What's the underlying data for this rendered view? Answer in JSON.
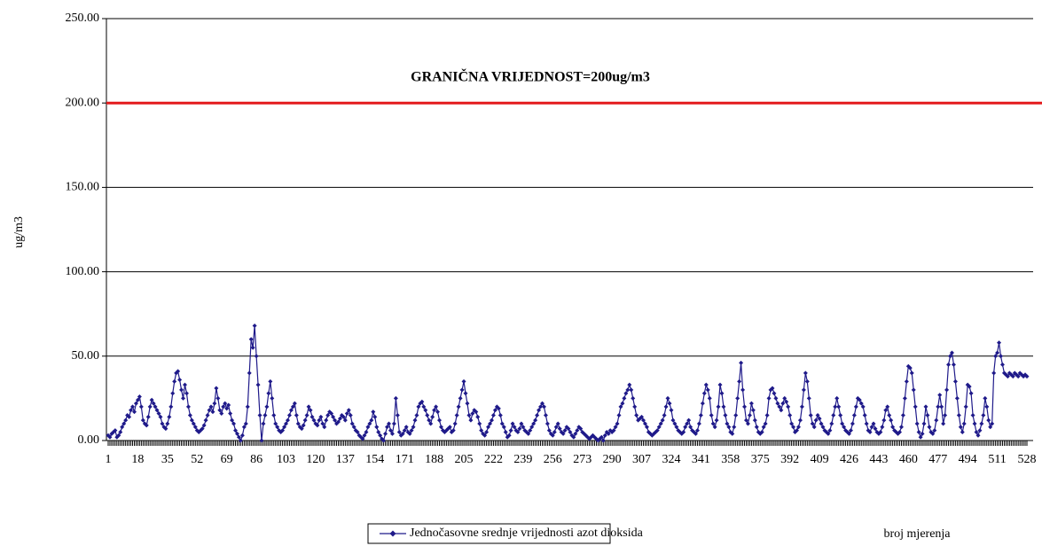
{
  "chart_data": {
    "type": "line",
    "y_label": "ug/m3",
    "x_label": "broj mjerenja",
    "threshold": {
      "value": 200,
      "color": "#e31a1c",
      "label": "GRANIČNA VRIJEDNOST=200ug/m3"
    },
    "legend": "bottom",
    "grid": true,
    "xlim": [
      1,
      528
    ],
    "xticks": [
      1,
      18,
      35,
      52,
      69,
      86,
      103,
      120,
      137,
      154,
      171,
      188,
      205,
      222,
      239,
      256,
      273,
      290,
      307,
      324,
      341,
      358,
      375,
      392,
      409,
      426,
      443,
      460,
      477,
      494,
      511,
      528
    ],
    "ylim": [
      0,
      250
    ],
    "yticks": [
      {
        "value": 0,
        "label": "0.00"
      },
      {
        "value": 50,
        "label": "50.00"
      },
      {
        "value": 100,
        "label": "100.00"
      },
      {
        "value": 150,
        "label": "150.00"
      },
      {
        "value": 200,
        "label": "200.00"
      },
      {
        "value": 250,
        "label": "250.00"
      }
    ],
    "x": [
      1,
      2,
      3,
      4,
      5,
      6,
      7,
      8,
      9,
      10,
      11,
      12,
      13,
      14,
      15,
      16,
      17,
      18,
      19,
      20,
      21,
      22,
      23,
      24,
      25,
      26,
      27,
      28,
      29,
      30,
      31,
      32,
      33,
      34,
      35,
      36,
      37,
      38,
      39,
      40,
      41,
      42,
      43,
      44,
      45,
      46,
      47,
      48,
      49,
      50,
      51,
      52,
      53,
      54,
      55,
      56,
      57,
      58,
      59,
      60,
      61,
      62,
      63,
      64,
      65,
      66,
      67,
      68,
      69,
      70,
      71,
      72,
      73,
      74,
      75,
      76,
      77,
      78,
      79,
      80,
      81,
      82,
      83,
      84,
      85,
      86,
      87,
      88,
      89,
      90,
      91,
      92,
      93,
      94,
      95,
      96,
      97,
      98,
      99,
      100,
      101,
      102,
      103,
      104,
      105,
      106,
      107,
      108,
      109,
      110,
      111,
      112,
      113,
      114,
      115,
      116,
      117,
      118,
      119,
      120,
      121,
      122,
      123,
      124,
      125,
      126,
      127,
      128,
      129,
      130,
      131,
      132,
      133,
      134,
      135,
      136,
      137,
      138,
      139,
      140,
      141,
      142,
      143,
      144,
      145,
      146,
      147,
      148,
      149,
      150,
      151,
      152,
      153,
      154,
      155,
      156,
      157,
      158,
      159,
      160,
      161,
      162,
      163,
      164,
      165,
      166,
      167,
      168,
      169,
      170,
      171,
      172,
      173,
      174,
      175,
      176,
      177,
      178,
      179,
      180,
      181,
      182,
      183,
      184,
      185,
      186,
      187,
      188,
      189,
      190,
      191,
      192,
      193,
      194,
      195,
      196,
      197,
      198,
      199,
      200,
      201,
      202,
      203,
      204,
      205,
      206,
      207,
      208,
      209,
      210,
      211,
      212,
      213,
      214,
      215,
      216,
      217,
      218,
      219,
      220,
      221,
      222,
      223,
      224,
      225,
      226,
      227,
      228,
      229,
      230,
      231,
      232,
      233,
      234,
      235,
      236,
      237,
      238,
      239,
      240,
      241,
      242,
      243,
      244,
      245,
      246,
      247,
      248,
      249,
      250,
      251,
      252,
      253,
      254,
      255,
      256,
      257,
      258,
      259,
      260,
      261,
      262,
      263,
      264,
      265,
      266,
      267,
      268,
      269,
      270,
      271,
      272,
      273,
      274,
      275,
      276,
      277,
      278,
      279,
      280,
      281,
      282,
      283,
      284,
      285,
      286,
      287,
      288,
      289,
      290,
      291,
      292,
      293,
      294,
      295,
      296,
      297,
      298,
      299,
      300,
      301,
      302,
      303,
      304,
      305,
      306,
      307,
      308,
      309,
      310,
      311,
      312,
      313,
      314,
      315,
      316,
      317,
      318,
      319,
      320,
      321,
      322,
      323,
      324,
      325,
      326,
      327,
      328,
      329,
      330,
      331,
      332,
      333,
      334,
      335,
      336,
      337,
      338,
      339,
      340,
      341,
      342,
      343,
      344,
      345,
      346,
      347,
      348,
      349,
      350,
      351,
      352,
      353,
      354,
      355,
      356,
      357,
      358,
      359,
      360,
      361,
      362,
      363,
      364,
      365,
      366,
      367,
      368,
      369,
      370,
      371,
      372,
      373,
      374,
      375,
      376,
      377,
      378,
      379,
      380,
      381,
      382,
      383,
      384,
      385,
      386,
      387,
      388,
      389,
      390,
      391,
      392,
      393,
      394,
      395,
      396,
      397,
      398,
      399,
      400,
      401,
      402,
      403,
      404,
      405,
      406,
      407,
      408,
      409,
      410,
      411,
      412,
      413,
      414,
      415,
      416,
      417,
      418,
      419,
      420,
      421,
      422,
      423,
      424,
      425,
      426,
      427,
      428,
      429,
      430,
      431,
      432,
      433,
      434,
      435,
      436,
      437,
      438,
      439,
      440,
      441,
      442,
      443,
      444,
      445,
      446,
      447,
      448,
      449,
      450,
      451,
      452,
      453,
      454,
      455,
      456,
      457,
      458,
      459,
      460,
      461,
      462,
      463,
      464,
      465,
      466,
      467,
      468,
      469,
      470,
      471,
      472,
      473,
      474,
      475,
      476,
      477,
      478,
      479,
      480,
      481,
      482,
      483,
      484,
      485,
      486,
      487,
      488,
      489,
      490,
      491,
      492,
      493,
      494,
      495,
      496,
      497,
      498,
      499,
      500,
      501,
      502,
      503,
      504,
      505,
      506,
      507,
      508,
      509,
      510,
      511,
      512,
      513,
      514,
      515,
      516,
      517,
      518,
      519,
      520,
      521,
      522,
      523,
      524,
      525,
      526,
      527,
      528
    ],
    "series": [
      {
        "name": "Jednočasovne srednje vrijednosti azot dioksida",
        "color": "#1f1a8a",
        "values": [
          3,
          2,
          4,
          5,
          6,
          2,
          3,
          5,
          8,
          10,
          12,
          15,
          14,
          18,
          20,
          17,
          22,
          24,
          26,
          20,
          12,
          10,
          9,
          14,
          20,
          24,
          22,
          20,
          18,
          16,
          14,
          10,
          8,
          7,
          10,
          14,
          20,
          28,
          35,
          40,
          41,
          36,
          30,
          25,
          33,
          28,
          20,
          15,
          12,
          10,
          8,
          6,
          5,
          6,
          7,
          9,
          12,
          15,
          18,
          20,
          17,
          22,
          31,
          25,
          18,
          16,
          20,
          22,
          19,
          21,
          16,
          12,
          10,
          6,
          4,
          2,
          0,
          3,
          8,
          10,
          20,
          40,
          60,
          55,
          68,
          50,
          33,
          15,
          0,
          10,
          15,
          20,
          28,
          35,
          25,
          15,
          10,
          8,
          6,
          5,
          6,
          8,
          10,
          12,
          15,
          18,
          20,
          22,
          15,
          10,
          8,
          7,
          9,
          12,
          15,
          20,
          18,
          14,
          12,
          10,
          9,
          12,
          14,
          10,
          8,
          12,
          15,
          17,
          16,
          14,
          12,
          10,
          11,
          13,
          15,
          14,
          12,
          16,
          18,
          15,
          10,
          8,
          6,
          5,
          3,
          2,
          1,
          3,
          5,
          8,
          10,
          12,
          17,
          14,
          8,
          5,
          3,
          1,
          0,
          4,
          8,
          10,
          6,
          4,
          10,
          25,
          15,
          5,
          3,
          4,
          6,
          8,
          5,
          4,
          6,
          8,
          12,
          15,
          20,
          22,
          23,
          20,
          18,
          15,
          12,
          10,
          14,
          18,
          20,
          17,
          12,
          8,
          6,
          5,
          6,
          7,
          8,
          5,
          6,
          10,
          15,
          20,
          25,
          30,
          35,
          28,
          22,
          15,
          12,
          16,
          18,
          17,
          14,
          10,
          6,
          4,
          3,
          5,
          8,
          10,
          12,
          15,
          18,
          20,
          19,
          15,
          10,
          8,
          5,
          2,
          3,
          6,
          10,
          8,
          6,
          5,
          7,
          10,
          8,
          6,
          5,
          4,
          6,
          8,
          10,
          12,
          15,
          18,
          20,
          22,
          20,
          15,
          10,
          6,
          4,
          3,
          5,
          8,
          10,
          7,
          5,
          4,
          6,
          8,
          7,
          5,
          3,
          2,
          4,
          6,
          8,
          7,
          5,
          4,
          3,
          2,
          1,
          2,
          3,
          2,
          1,
          0,
          1,
          2,
          0,
          3,
          5,
          4,
          6,
          5,
          6,
          8,
          10,
          15,
          20,
          22,
          25,
          28,
          30,
          33,
          30,
          25,
          20,
          15,
          12,
          13,
          14,
          12,
          10,
          8,
          5,
          4,
          3,
          4,
          5,
          6,
          8,
          10,
          12,
          15,
          20,
          25,
          22,
          18,
          12,
          10,
          8,
          6,
          5,
          4,
          5,
          8,
          10,
          12,
          8,
          6,
          5,
          4,
          6,
          10,
          15,
          22,
          28,
          33,
          30,
          25,
          15,
          10,
          8,
          12,
          20,
          33,
          28,
          20,
          15,
          10,
          8,
          5,
          4,
          8,
          15,
          25,
          35,
          46,
          30,
          20,
          12,
          10,
          15,
          22,
          18,
          12,
          8,
          5,
          4,
          5,
          8,
          10,
          15,
          25,
          30,
          31,
          28,
          25,
          22,
          20,
          18,
          22,
          25,
          23,
          20,
          15,
          10,
          8,
          5,
          6,
          8,
          12,
          20,
          30,
          40,
          35,
          25,
          15,
          10,
          8,
          12,
          15,
          13,
          10,
          8,
          6,
          5,
          4,
          6,
          10,
          15,
          20,
          25,
          20,
          15,
          10,
          8,
          6,
          5,
          4,
          6,
          10,
          15,
          20,
          25,
          24,
          22,
          20,
          15,
          10,
          6,
          5,
          8,
          10,
          7,
          5,
          4,
          5,
          8,
          12,
          18,
          20,
          15,
          12,
          8,
          6,
          5,
          4,
          5,
          8,
          15,
          25,
          35,
          44,
          43,
          40,
          30,
          20,
          10,
          5,
          2,
          4,
          10,
          20,
          15,
          8,
          5,
          4,
          6,
          12,
          20,
          27,
          20,
          10,
          15,
          30,
          45,
          50,
          52,
          45,
          35,
          25,
          15,
          8,
          5,
          10,
          20,
          33,
          32,
          28,
          15,
          10,
          5,
          3,
          6,
          10,
          15,
          25,
          20,
          12,
          8,
          10,
          40,
          50,
          52,
          58,
          50,
          45,
          40,
          39,
          38,
          40,
          39,
          38,
          40,
          39,
          38,
          40,
          39,
          38,
          39,
          38
        ]
      }
    ]
  }
}
